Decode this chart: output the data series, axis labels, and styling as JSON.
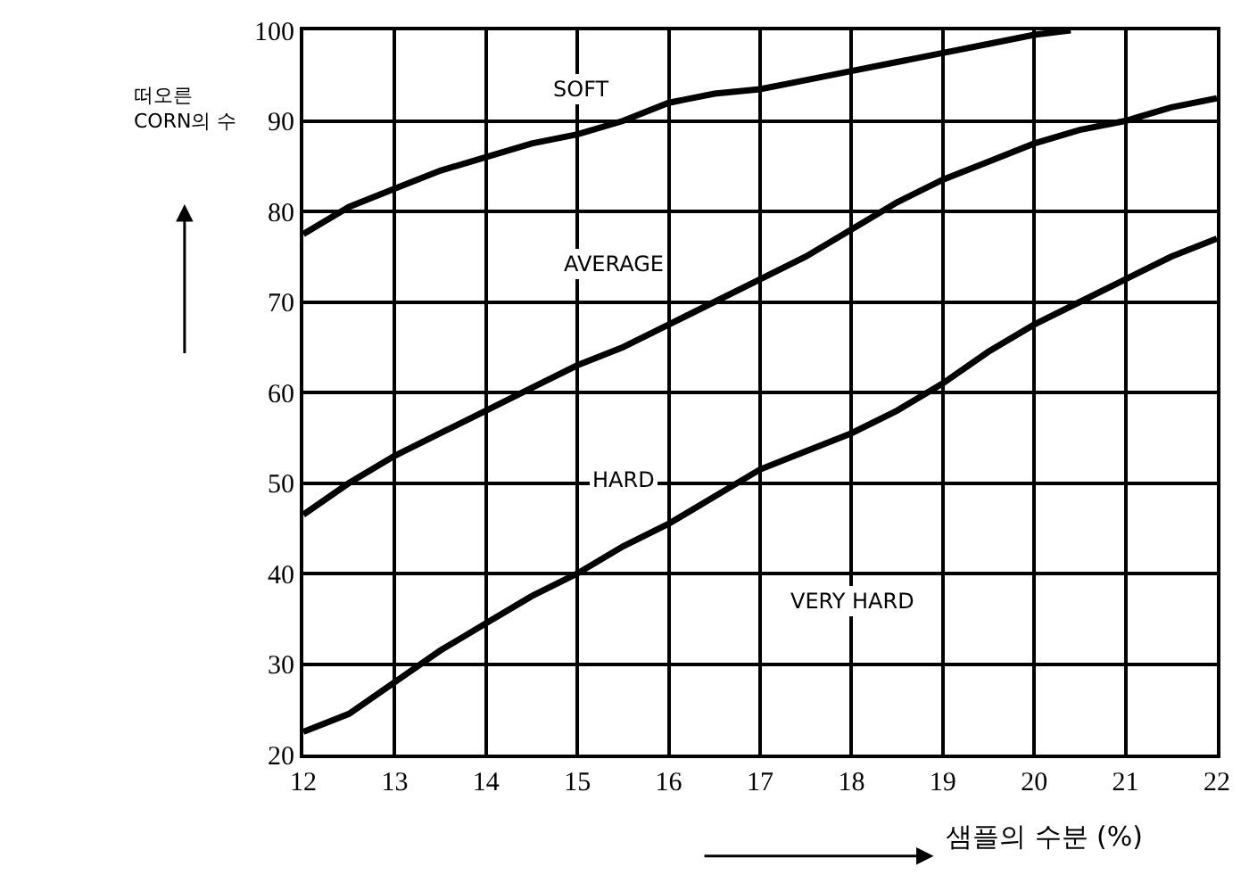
{
  "chart_data": {
    "type": "line",
    "xlabel": "샘플의 수분 (%)",
    "ylabel": "떠오른\nCORN의 수",
    "series": [
      {
        "color": "#000000",
        "x": [
          12,
          12.5,
          13,
          13.5,
          14,
          14.5,
          15,
          15.5,
          16,
          16.5,
          17,
          17.5,
          18,
          18.5,
          19,
          19.5,
          20,
          20.4
        ],
        "values": [
          77.5,
          80.5,
          82.5,
          84.5,
          86,
          87.5,
          88.5,
          90,
          92,
          93,
          93.5,
          94.5,
          95.5,
          96.5,
          97.5,
          98.5,
          99.5,
          100
        ]
      },
      {
        "color": "#000000",
        "x": [
          12,
          12.5,
          13,
          13.5,
          14,
          14.5,
          15,
          15.5,
          16,
          16.5,
          17,
          17.5,
          18,
          18.5,
          19,
          19.5,
          20,
          20.5,
          21,
          21.5,
          22
        ],
        "values": [
          46.5,
          50,
          53,
          55.5,
          58,
          60.5,
          63,
          65,
          67.5,
          70,
          72.5,
          75,
          78,
          81,
          83.5,
          85.5,
          87.5,
          89,
          90,
          91.5,
          92.5
        ]
      },
      {
        "color": "#000000",
        "x": [
          12,
          12.5,
          13,
          13.5,
          14,
          14.5,
          15,
          15.5,
          16,
          16.5,
          17,
          17.5,
          18,
          18.5,
          19,
          19.5,
          20,
          20.5,
          21,
          21.5,
          22
        ],
        "values": [
          22.5,
          24.5,
          28,
          31.5,
          34.5,
          37.5,
          40,
          43,
          45.5,
          48.5,
          51.5,
          53.5,
          55.5,
          58,
          61,
          64.5,
          67.5,
          70,
          72.5,
          75,
          77
        ]
      }
    ],
    "annotations": [
      "SOFT",
      "AVERAGE",
      "HARD",
      "VERY HARD"
    ],
    "xlim": [
      12,
      22
    ],
    "xticks": [
      12,
      13,
      14,
      15,
      16,
      17,
      18,
      19,
      20,
      21,
      22
    ],
    "ylim": [
      20,
      100
    ],
    "yticks": [
      20,
      30,
      40,
      50,
      60,
      70,
      80,
      90,
      100
    ],
    "grid": true,
    "line_style": "solid",
    "marker": "none"
  }
}
